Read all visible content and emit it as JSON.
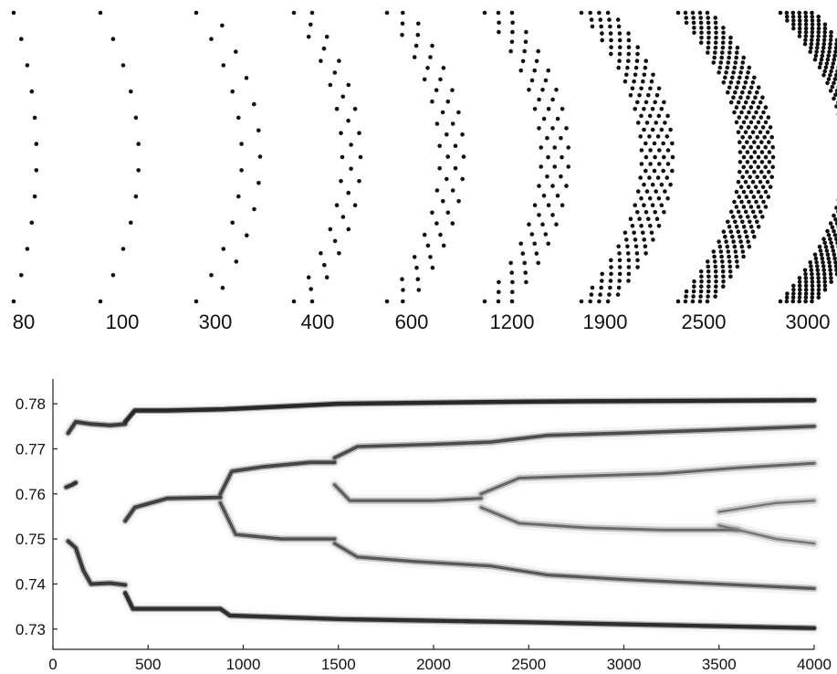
{
  "chart_data": [
    {
      "type": "scatter",
      "title": "",
      "panels": [
        {
          "label": "80",
          "rows": 1
        },
        {
          "label": "100",
          "rows": 1
        },
        {
          "label": "300",
          "rows": 2
        },
        {
          "label": "400",
          "rows": 3
        },
        {
          "label": "600",
          "rows": 4
        },
        {
          "label": "1200",
          "rows": 5
        },
        {
          "label": "1900",
          "rows": 8
        },
        {
          "label": "2500",
          "rows": 10
        },
        {
          "label": "3000",
          "rows": 12
        }
      ],
      "xlabel": "",
      "ylabel": ""
    },
    {
      "type": "heatmap",
      "title": "",
      "xlabel": "",
      "ylabel": "",
      "xlim": [
        0,
        4000
      ],
      "ylim": [
        0.7255,
        0.7855
      ],
      "x_ticks": [
        "0",
        "500",
        "1000",
        "1500",
        "2000",
        "2500",
        "3000",
        "3500",
        "4000"
      ],
      "y_ticks": [
        "0.73",
        "0.74",
        "0.75",
        "0.76",
        "0.77",
        "0.78"
      ],
      "grid": false,
      "colormap": "grayscale",
      "branches": [
        {
          "points": [
            [
              70,
              0.7615
            ],
            [
              100,
              0.762
            ],
            [
              120,
              0.7625
            ]
          ],
          "intensity": 0.9
        },
        {
          "points": [
            [
              80,
              0.7495
            ],
            [
              120,
              0.748
            ],
            [
              160,
              0.743
            ],
            [
              200,
              0.74
            ],
            [
              300,
              0.7402
            ],
            [
              380,
              0.7398
            ]
          ],
          "intensity": 0.85
        },
        {
          "points": [
            [
              80,
              0.7735
            ],
            [
              120,
              0.776
            ],
            [
              200,
              0.7755
            ],
            [
              300,
              0.7752
            ],
            [
              380,
              0.7755
            ]
          ],
          "intensity": 0.85
        },
        {
          "points": [
            [
              380,
              0.776
            ],
            [
              430,
              0.7785
            ],
            [
              600,
              0.7785
            ],
            [
              900,
              0.7788
            ],
            [
              1500,
              0.78
            ],
            [
              2500,
              0.7805
            ],
            [
              4000,
              0.7808
            ]
          ],
          "intensity": 1.0
        },
        {
          "points": [
            [
              380,
              0.738
            ],
            [
              420,
              0.7345
            ],
            [
              600,
              0.7345
            ],
            [
              880,
              0.7345
            ],
            [
              930,
              0.733
            ],
            [
              1500,
              0.7322
            ],
            [
              2500,
              0.7315
            ],
            [
              4000,
              0.7302
            ]
          ],
          "intensity": 0.95
        },
        {
          "points": [
            [
              380,
              0.754
            ],
            [
              430,
              0.757
            ],
            [
              600,
              0.759
            ],
            [
              880,
              0.7592
            ]
          ],
          "intensity": 0.8
        },
        {
          "points": [
            [
              880,
              0.76
            ],
            [
              940,
              0.765
            ],
            [
              1100,
              0.766
            ],
            [
              1350,
              0.767
            ],
            [
              1480,
              0.767
            ]
          ],
          "intensity": 0.75
        },
        {
          "points": [
            [
              880,
              0.758
            ],
            [
              960,
              0.751
            ],
            [
              1200,
              0.75
            ],
            [
              1480,
              0.75
            ]
          ],
          "intensity": 0.65
        },
        {
          "points": [
            [
              1480,
              0.768
            ],
            [
              1600,
              0.7705
            ],
            [
              2000,
              0.771
            ],
            [
              2300,
              0.7715
            ],
            [
              2600,
              0.773
            ],
            [
              3000,
              0.7735
            ],
            [
              3500,
              0.7742
            ],
            [
              4000,
              0.775
            ]
          ],
          "intensity": 0.7
        },
        {
          "points": [
            [
              1480,
              0.762
            ],
            [
              1560,
              0.7585
            ],
            [
              1800,
              0.7585
            ],
            [
              2000,
              0.7585
            ],
            [
              2250,
              0.759
            ]
          ],
          "intensity": 0.55
        },
        {
          "points": [
            [
              1480,
              0.749
            ],
            [
              1600,
              0.746
            ],
            [
              1900,
              0.745
            ],
            [
              2300,
              0.744
            ],
            [
              2600,
              0.742
            ],
            [
              3000,
              0.741
            ],
            [
              3500,
              0.74
            ],
            [
              4000,
              0.739
            ]
          ],
          "intensity": 0.6
        },
        {
          "points": [
            [
              2250,
              0.76
            ],
            [
              2450,
              0.7635
            ],
            [
              2800,
              0.764
            ],
            [
              3200,
              0.7645
            ],
            [
              3600,
              0.7658
            ],
            [
              4000,
              0.7668
            ]
          ],
          "intensity": 0.5
        },
        {
          "points": [
            [
              2250,
              0.757
            ],
            [
              2450,
              0.7535
            ],
            [
              2800,
              0.7525
            ],
            [
              3200,
              0.752
            ],
            [
              3600,
              0.752
            ]
          ],
          "intensity": 0.45
        },
        {
          "points": [
            [
              3500,
              0.756
            ],
            [
              3800,
              0.758
            ],
            [
              4000,
              0.7585
            ]
          ],
          "intensity": 0.35
        },
        {
          "points": [
            [
              3500,
              0.753
            ],
            [
              3800,
              0.75
            ],
            [
              4000,
              0.749
            ]
          ],
          "intensity": 0.35
        }
      ]
    }
  ]
}
